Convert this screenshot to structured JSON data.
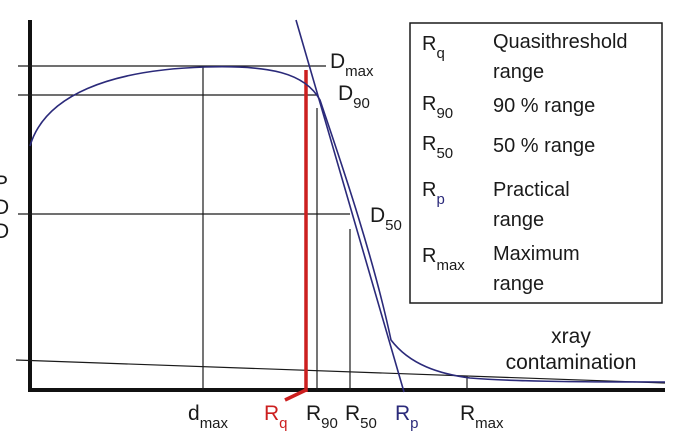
{
  "axis": {
    "ylabel_lines": [
      "P",
      "D",
      "D"
    ]
  },
  "markers": {
    "dmax": {
      "main": "D",
      "sub": "max"
    },
    "d90": {
      "main": "D",
      "sub": "90"
    },
    "d50": {
      "main": "D",
      "sub": "50"
    }
  },
  "xlabels": {
    "dmax": {
      "main": "d",
      "sub": "max"
    },
    "rq": {
      "main": "R",
      "sub": "q"
    },
    "r90": {
      "main": "R",
      "sub": "90"
    },
    "r50": {
      "main": "R",
      "sub": "50"
    },
    "rp": {
      "main": "R",
      "sub": "p"
    },
    "rmax": {
      "main": "R",
      "sub": "max"
    }
  },
  "annotation": {
    "line1": "xray",
    "line2": "contamination"
  },
  "legend": [
    {
      "symbol": "R",
      "sub": "q",
      "desc1": "Quasithreshold",
      "desc2": "range"
    },
    {
      "symbol": "R",
      "sub": "90",
      "desc1": "90 % range",
      "desc2": ""
    },
    {
      "symbol": "R",
      "sub": "50",
      "desc1": "50 % range",
      "desc2": ""
    },
    {
      "symbol": "R",
      "sub": "p",
      "desc1": "Practical",
      "desc2": "range"
    },
    {
      "symbol": "R",
      "sub": "max",
      "desc1": "Maximum",
      "desc2": "range"
    }
  ],
  "colors": {
    "curve": "#2b2a7a",
    "rq_line": "#cc1f1f",
    "axes": "#111111",
    "guides": "#1a1a1a"
  }
}
